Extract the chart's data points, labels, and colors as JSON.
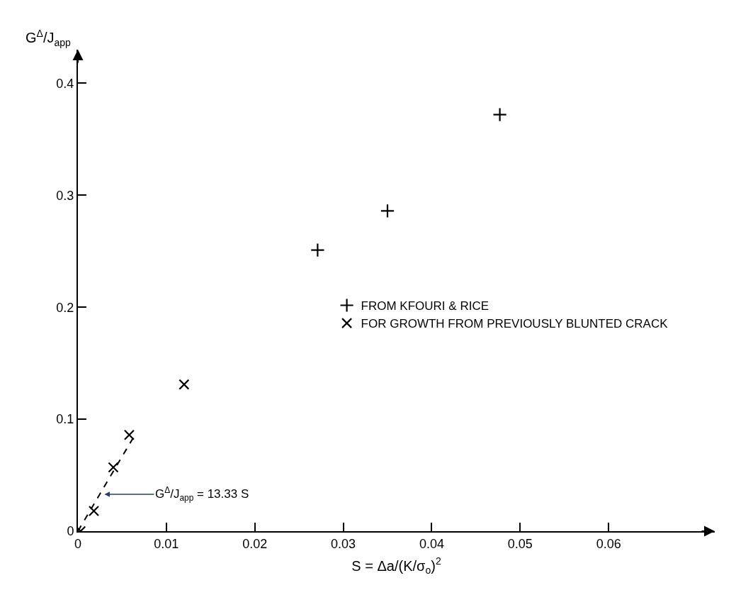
{
  "chart_data": {
    "type": "scatter",
    "xlabel": "S = Δa/(K/σ$_{o}$)$^{2}$",
    "ylabel": "G$^{Δ}$/J$_{app}$",
    "series": [
      {
        "name": "FROM KFOURI & RICE",
        "color": "#000000",
        "marker": "cross",
        "x": [
          0.0271,
          0.035,
          0.0477
        ],
        "values": [
          0.251,
          0.286,
          0.372
        ]
      },
      {
        "name": "FOR GROWTH FROM PREVIOUSLY BLUNTED CRACK",
        "color": "#000000",
        "marker": "x",
        "x": [
          0.0003,
          0.0018,
          0.004,
          0.0058,
          0.012
        ],
        "values": [
          0.0,
          0.018,
          0.057,
          0.086,
          0.131
        ]
      },
      {
        "type": "line",
        "color": "#000000",
        "line_style": "dashed",
        "marker": "none",
        "x": [
          0.0,
          0.0065
        ],
        "values": [
          0.0,
          0.0867
        ]
      }
    ],
    "annotations": [
      {
        "text": "G$^{Δ}$/J$_{app}$ = 13.33 S",
        "x": 0.003,
        "y": 0.033
      }
    ],
    "xlim": [
      0,
      0.072
    ],
    "ylim": [
      0,
      0.43
    ],
    "xticks": [
      0,
      0.01,
      0.02,
      0.03,
      0.04,
      0.05,
      0.06
    ],
    "yticks": [
      0,
      0.1,
      0.2,
      0.3,
      0.4
    ],
    "legend": "right"
  }
}
